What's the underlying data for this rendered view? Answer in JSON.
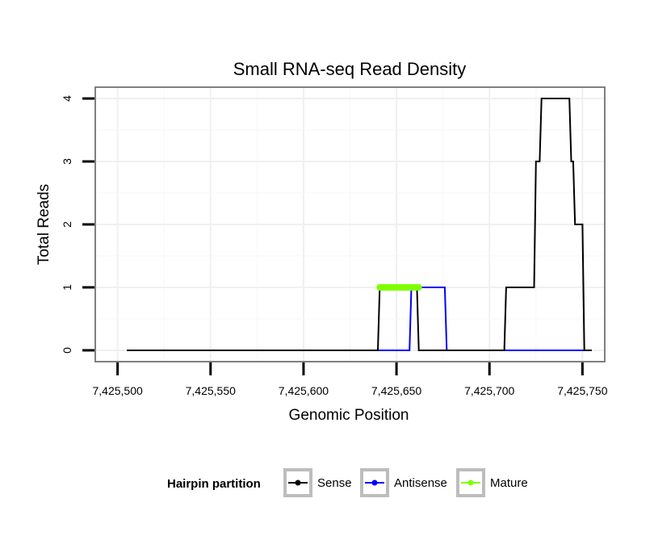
{
  "chart_data": {
    "type": "line",
    "title": "Small RNA-seq Read Density",
    "xlabel": "Genomic Position",
    "ylabel": "Total Reads",
    "xlim": [
      7425488,
      7425762
    ],
    "ylim": [
      -0.18,
      4.18
    ],
    "x_ticks": [
      7425500,
      7425550,
      7425600,
      7425650,
      7425700,
      7425750
    ],
    "x_tick_labels": [
      "7,425,500",
      "7,425,550",
      "7,425,600",
      "7,425,650",
      "7,425,700",
      "7,425,750"
    ],
    "y_ticks": [
      0,
      1,
      2,
      3,
      4
    ],
    "y_tick_labels": [
      "0",
      "1",
      "2",
      "3",
      "4"
    ],
    "grid": true,
    "legend": {
      "title": "Hairpin partition",
      "position": "bottom",
      "entries": [
        "Sense",
        "Antisense",
        "Mature"
      ]
    },
    "series": [
      {
        "name": "Antisense",
        "color": "#0000ff",
        "x": [
          7425505,
          7425657,
          7425658,
          7425663,
          7425664,
          7425676,
          7425677,
          7425755
        ],
        "y": [
          0,
          0,
          1,
          1,
          1,
          1,
          0,
          0
        ]
      },
      {
        "name": "Sense",
        "color": "#000000",
        "x": [
          7425505,
          7425640,
          7425641,
          7425661,
          7425662,
          7425708,
          7425709,
          7425724,
          7425725,
          7425727,
          7425728,
          7425743,
          7425744,
          7425745,
          7425746,
          7425750,
          7425751,
          7425755
        ],
        "y": [
          0,
          0,
          1,
          1,
          0,
          0,
          1,
          1,
          3,
          3,
          4,
          4,
          3,
          3,
          2,
          2,
          0,
          0
        ]
      },
      {
        "name": "Mature",
        "color": "#7fff00",
        "x": [
          7425641,
          7425662
        ],
        "y": [
          1,
          1
        ]
      }
    ]
  }
}
